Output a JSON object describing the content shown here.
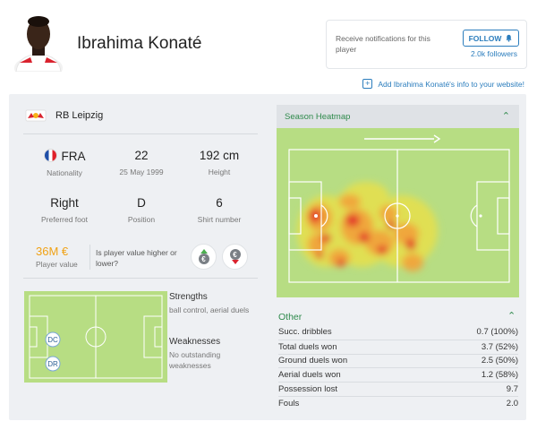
{
  "player": {
    "name": "Ibrahima Konaté"
  },
  "notifications": {
    "text": "Receive notifications for this player",
    "follow_label": "FOLLOW",
    "followers": "2.0k followers"
  },
  "add_info_link": "Add Ibrahima Konaté's info to your website!",
  "team": {
    "name": "RB Leipzig"
  },
  "info": {
    "nationality_value": "FRA",
    "nationality_label": "Nationality",
    "age_value": "22",
    "birthdate": "25 May 1999",
    "height_value": "192 cm",
    "height_label": "Height",
    "foot_value": "Right",
    "foot_label": "Preferred foot",
    "position_value": "D",
    "position_label": "Position",
    "shirt_value": "6",
    "shirt_label": "Shirt number"
  },
  "market_value": {
    "value": "36M €",
    "label": "Player value",
    "question": "Is player value higher or lower?",
    "higher_icon": "euro-up-icon",
    "lower_icon": "euro-down-icon"
  },
  "positions": [
    "DC",
    "DR"
  ],
  "strengths": {
    "title": "Strengths",
    "text": "ball control, aerial duels"
  },
  "weaknesses": {
    "title": "Weaknesses",
    "text": "No outstanding weaknesses"
  },
  "heatmap": {
    "title": "Season Heatmap"
  },
  "other": {
    "title": "Other",
    "rows": [
      {
        "label": "Succ. dribbles",
        "value": "0.7 (100%)"
      },
      {
        "label": "Total duels won",
        "value": "3.7 (52%)"
      },
      {
        "label": "Ground duels won",
        "value": "2.5 (50%)"
      },
      {
        "label": "Aerial duels won",
        "value": "1.2 (58%)"
      },
      {
        "label": "Possession lost",
        "value": "9.7"
      },
      {
        "label": "Fouls",
        "value": "2.0"
      }
    ]
  },
  "colors": {
    "accent_blue": "#2b7dbd",
    "accent_green": "#2f8a4c",
    "value_orange": "#f0a215",
    "pitch_green": "#b7dd83"
  }
}
